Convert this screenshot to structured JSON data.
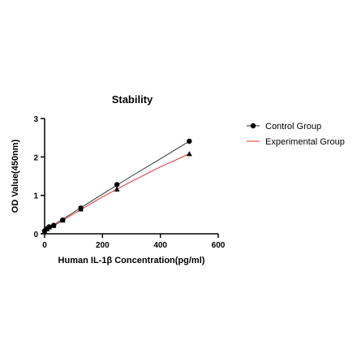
{
  "chart_data": {
    "type": "scatter",
    "title": "Stability",
    "xlabel": "Human IL-1β Concentration(pg/ml)",
    "ylabel": "OD Value(450nm)",
    "xlim": [
      0,
      600
    ],
    "ylim": [
      0,
      3
    ],
    "xticks": [
      0,
      200,
      400,
      600
    ],
    "yticks": [
      0,
      1,
      2,
      3
    ],
    "grid": false,
    "legend_position": "right",
    "series": [
      {
        "name": "Control Group",
        "marker": "circle",
        "color": "#000000",
        "line_color": "#333333",
        "x": [
          0,
          7.8,
          15.6,
          31.25,
          62.5,
          125,
          250,
          500
        ],
        "y": [
          0.08,
          0.13,
          0.18,
          0.22,
          0.36,
          0.67,
          1.28,
          2.41
        ],
        "fit": [
          [
            0,
            0.08
          ],
          [
            100,
            0.56
          ],
          [
            200,
            1.03
          ],
          [
            300,
            1.5
          ],
          [
            400,
            1.95
          ],
          [
            500,
            2.41
          ]
        ]
      },
      {
        "name": "Experimental Group",
        "marker": "triangle",
        "color": "#000000",
        "line_color": "#e03030",
        "x": [
          0,
          7.8,
          15.6,
          31.25,
          62.5,
          125,
          250,
          500
        ],
        "y": [
          0.06,
          0.12,
          0.17,
          0.21,
          0.35,
          0.64,
          1.16,
          2.08
        ],
        "fit": [
          [
            0,
            0.06
          ],
          [
            100,
            0.52
          ],
          [
            200,
            0.96
          ],
          [
            300,
            1.36
          ],
          [
            400,
            1.74
          ],
          [
            500,
            2.08
          ]
        ]
      }
    ]
  }
}
